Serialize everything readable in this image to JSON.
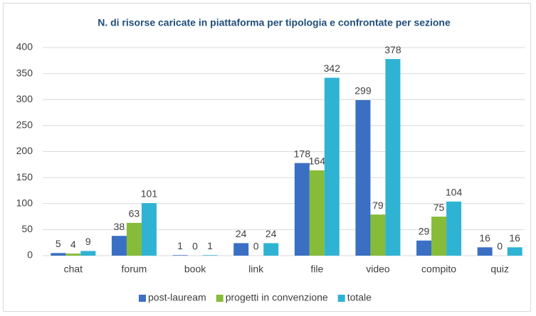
{
  "chart_data": {
    "type": "bar",
    "title": "N. di risorse caricate in piattaforma per tipologia e confrontate per sezione",
    "categories": [
      "chat",
      "forum",
      "book",
      "link",
      "file",
      "video",
      "compito",
      "quiz"
    ],
    "series": [
      {
        "name": "post-lauream",
        "color": "#3a6fc4",
        "values": [
          5,
          38,
          1,
          24,
          178,
          299,
          29,
          16
        ]
      },
      {
        "name": "progetti in convenzione",
        "color": "#86bc3a",
        "values": [
          4,
          63,
          0,
          0,
          164,
          79,
          75,
          0
        ]
      },
      {
        "name": "totale",
        "color": "#2fb3d3",
        "values": [
          9,
          101,
          1,
          24,
          342,
          378,
          104,
          16
        ]
      }
    ],
    "ylim": [
      0,
      400
    ],
    "yticks": [
      0,
      50,
      100,
      150,
      200,
      250,
      300,
      350,
      400
    ],
    "grid": true,
    "legend": "bottom"
  }
}
